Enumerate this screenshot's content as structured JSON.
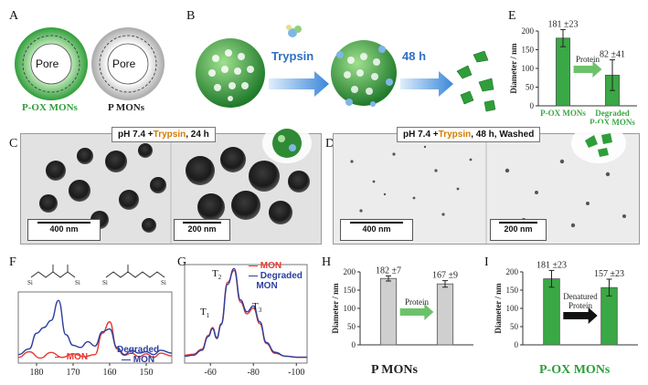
{
  "panels": {
    "A": {
      "letter": "A",
      "pore_label": "Pore",
      "pore_label_2": "Pore",
      "caption_left": "P-OX MONs",
      "caption_right": "P MONs",
      "color_left": "#3aa845",
      "color_right": "#bdbdbd"
    },
    "B": {
      "letter": "B",
      "arrow1_label": "Trypsin",
      "arrow2_label": "48 h"
    },
    "C": {
      "letter": "C",
      "banner_prefix": "pH 7.4 +",
      "banner_enzyme": "Trypsin",
      "banner_suffix": ", 24 h",
      "scale_left": "400 nm",
      "scale_right": "200 nm"
    },
    "D": {
      "letter": "D",
      "banner_prefix": "pH 7.4 +",
      "banner_enzyme": "Trypsin",
      "banner_suffix": ", 48 h, Washed",
      "scale_left": "400 nm",
      "scale_right": "200 nm"
    },
    "F": {
      "letter": "F",
      "legend_red": "MON",
      "legend_blue": "Degraded",
      "legend_blue_2": "MON"
    },
    "G": {
      "letter": "G",
      "legend_red": "MON",
      "legend_blue": "Degraded",
      "legend_blue_2": "MON",
      "t1": "T",
      "t1_sub": "1",
      "t2": "T",
      "t2_sub": "2",
      "t3": "T",
      "t3_sub": "3"
    },
    "H": {
      "letter": "H",
      "caption": "P MONs",
      "arrow_label": "Protein"
    },
    "I": {
      "letter": "I",
      "caption": "P-OX MONs",
      "arrow_label": "Denatured",
      "arrow_label_2": "Protein"
    },
    "E": {
      "letter": "E",
      "arrow_label": "Protein"
    }
  },
  "chart_data": [
    {
      "id": "E",
      "type": "bar",
      "ylabel": "Diameter / nm",
      "ylim": [
        0,
        200
      ],
      "yticks": [
        0,
        50,
        100,
        150,
        200
      ],
      "categories": [
        "P-OX MONs",
        "Degraded P-OX MONs"
      ],
      "category_lines": [
        [
          "P-OX MONs"
        ],
        [
          "Degraded",
          "P-OX MONs"
        ]
      ],
      "values": [
        181,
        82
      ],
      "errors": [
        23,
        41
      ],
      "value_labels": [
        "181 ±23",
        "82 ±41"
      ],
      "color": "#3aa845"
    },
    {
      "id": "H",
      "type": "bar",
      "ylabel": "Diameter / nm",
      "ylim": [
        0,
        200
      ],
      "yticks": [
        0,
        50,
        100,
        150,
        200
      ],
      "categories": [
        "",
        ""
      ],
      "values": [
        182,
        167
      ],
      "errors": [
        7,
        9
      ],
      "value_labels": [
        "182 ±7",
        "167 ±9"
      ],
      "color": "#cfcfcf"
    },
    {
      "id": "I",
      "type": "bar",
      "ylabel": "Diameter / nm",
      "ylim": [
        0,
        200
      ],
      "yticks": [
        0,
        50,
        100,
        150,
        200
      ],
      "categories": [
        "",
        ""
      ],
      "values": [
        181,
        157
      ],
      "errors": [
        23,
        23
      ],
      "value_labels": [
        "181 ±23",
        "157 ±23"
      ],
      "color": "#3aa845"
    },
    {
      "id": "F",
      "type": "line",
      "xlim": [
        185,
        143
      ],
      "xticks": [
        180,
        170,
        160,
        150
      ],
      "series": [
        {
          "name": "MON",
          "color": "#e53935",
          "x": [
            185,
            182,
            179,
            176,
            173,
            170,
            167,
            164,
            162,
            160,
            158,
            156,
            154,
            152,
            150,
            148,
            146,
            143
          ],
          "y": [
            0.08,
            0.16,
            0.07,
            0.15,
            0.08,
            0.13,
            0.09,
            0.12,
            0.42,
            0.58,
            0.2,
            0.11,
            0.14,
            0.09,
            0.13,
            0.08,
            0.14,
            0.1
          ]
        },
        {
          "name": "Degraded MON",
          "color": "#2b3fa0",
          "x": [
            185,
            182,
            180,
            178,
            176,
            174,
            172,
            170,
            168,
            166,
            164,
            162,
            160,
            158,
            156,
            154,
            152,
            150,
            148,
            146,
            143
          ],
          "y": [
            0.12,
            0.2,
            0.42,
            0.5,
            0.6,
            0.88,
            0.4,
            0.25,
            0.22,
            0.3,
            0.24,
            0.44,
            0.48,
            0.22,
            0.12,
            0.18,
            0.14,
            0.16,
            0.12,
            0.18,
            0.14
          ]
        }
      ]
    },
    {
      "id": "G",
      "type": "line",
      "xlim": [
        -48,
        -105
      ],
      "xticks": [
        -60,
        -80,
        -100
      ],
      "series": [
        {
          "name": "MON",
          "color": "#e53935",
          "x": [
            -48,
            -52,
            -56,
            -59,
            -61,
            -63,
            -65,
            -68,
            -71,
            -74,
            -77,
            -80,
            -83,
            -86,
            -90,
            -95,
            -100,
            -105
          ],
          "y": [
            0.08,
            0.09,
            0.14,
            0.28,
            0.36,
            0.26,
            0.4,
            0.82,
            0.94,
            0.62,
            0.5,
            0.56,
            0.4,
            0.2,
            0.1,
            0.07,
            0.06,
            0.06
          ]
        },
        {
          "name": "Degraded MON",
          "color": "#2b3fa0",
          "x": [
            -48,
            -52,
            -56,
            -59,
            -61,
            -63,
            -65,
            -68,
            -71,
            -74,
            -77,
            -80,
            -83,
            -86,
            -90,
            -95,
            -100,
            -105
          ],
          "y": [
            0.07,
            0.08,
            0.13,
            0.27,
            0.35,
            0.25,
            0.39,
            0.8,
            0.96,
            0.64,
            0.52,
            0.58,
            0.42,
            0.21,
            0.11,
            0.07,
            0.06,
            0.06
          ]
        }
      ]
    }
  ]
}
